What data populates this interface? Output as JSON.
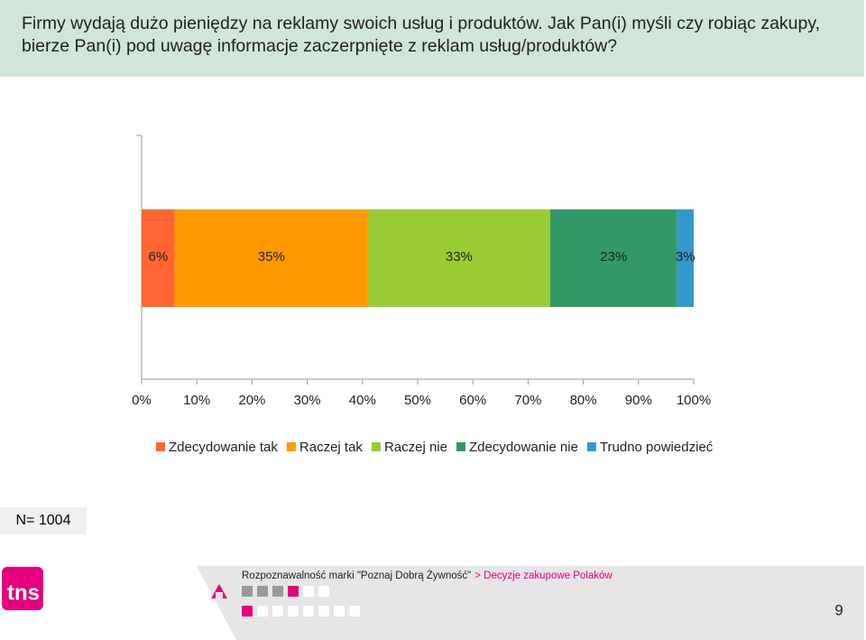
{
  "header": {
    "title": "Firmy wydają dużo pieniędzy na reklamy swoich usług i produktów. Jak Pan(i) myśli czy robiąc zakupy, bierze Pan(i) pod uwagę informacje zaczerpnięte z reklam usług/produktów?"
  },
  "chart_data": {
    "type": "stacked-bar-horizontal",
    "categories": [
      null
    ],
    "series": [
      {
        "name": "Zdecydowanie tak",
        "color": "#ff6633",
        "values": [
          6
        ],
        "value_labels": [
          "6%"
        ]
      },
      {
        "name": "Raczej tak",
        "color": "#ff9900",
        "values": [
          35
        ],
        "value_labels": [
          "35%"
        ]
      },
      {
        "name": "Raczej nie",
        "color": "#99cc33",
        "values": [
          33
        ],
        "value_labels": [
          "33%"
        ]
      },
      {
        "name": "Zdecydowanie nie",
        "color": "#339966",
        "values": [
          23
        ],
        "value_labels": [
          "23%"
        ]
      },
      {
        "name": "Trudno powiedzieć",
        "color": "#3399cc",
        "values": [
          3
        ],
        "value_labels": [
          "3%"
        ]
      }
    ],
    "xlim": [
      0,
      100
    ],
    "xticks": [
      {
        "value": 0,
        "label": "0%"
      },
      {
        "value": 10,
        "label": "10%"
      },
      {
        "value": 20,
        "label": "20%"
      },
      {
        "value": 30,
        "label": "30%"
      },
      {
        "value": 40,
        "label": "40%"
      },
      {
        "value": 50,
        "label": "50%"
      },
      {
        "value": 60,
        "label": "60%"
      },
      {
        "value": 70,
        "label": "70%"
      },
      {
        "value": 80,
        "label": "80%"
      },
      {
        "value": 90,
        "label": "90%"
      },
      {
        "value": 100,
        "label": "100%"
      }
    ],
    "legend": "bottom"
  },
  "sample": "N= 1004",
  "footer": {
    "logo": "tns",
    "source": "Rozpoznawalność marki \"Poznaj Dobrą Żywność\"",
    "section": "> Decyzje zakupowe Polaków",
    "page": "9"
  }
}
